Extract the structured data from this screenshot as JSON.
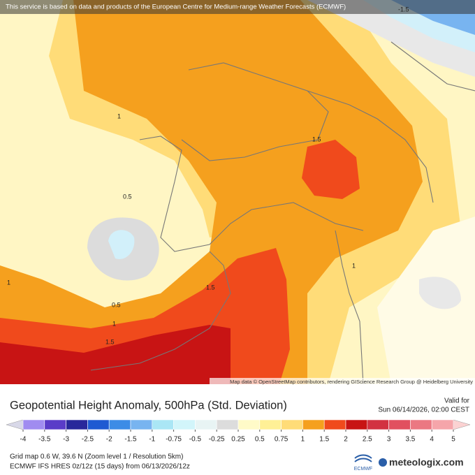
{
  "header": {
    "notice": "This service is based on data and products of the European Centre for Medium-range Weather Forecasts (ECMWF)"
  },
  "map": {
    "contour_labels": [
      "1",
      "0.5",
      "1.5",
      "1",
      "0.5",
      "1",
      "1.5",
      "1.5",
      "1",
      "-1.5"
    ],
    "attribution": "Map data © OpenStreetMap contributors, rendering GIScience Research Group @ Heidelberg University"
  },
  "footer": {
    "title": "Geopotential Height Anomaly, 500hPa (Std. Deviation)",
    "valid_label": "Valid for",
    "valid_time": "Sun 06/14/2026, 02:00 CEST",
    "legend": {
      "ticks": [
        -4,
        -3.5,
        -3,
        -2.5,
        -2,
        -1.5,
        -1,
        -0.75,
        -0.5,
        -0.25,
        0.25,
        0.5,
        0.75,
        1,
        1.5,
        2,
        2.5,
        3,
        3.5,
        4,
        5
      ],
      "colors": [
        "#a08cf0",
        "#5a3cc8",
        "#28289b",
        "#1e5ad2",
        "#3c8ce6",
        "#78b4f0",
        "#aae6f5",
        "#d2f5fa",
        "#e8f4f4",
        "#dcdcdc",
        "#fffac8",
        "#fff096",
        "#ffdc78",
        "#f5a01e",
        "#f04a1c",
        "#c81414",
        "#d23241",
        "#e1505f",
        "#eb7882",
        "#f5a5aa"
      ],
      "under_color": "#d8d8e8",
      "over_color": "#fbd2d2"
    },
    "line1": "Grid map 0.6 W, 39.6 N (Zoom level 1 / Resolution 5km)",
    "line2": "ECMWF IFS HRES 0z/12z (15 days) from 06/13/2026/12z",
    "ecmwf_logo": "ECMWF",
    "brand": "meteologix.com"
  }
}
